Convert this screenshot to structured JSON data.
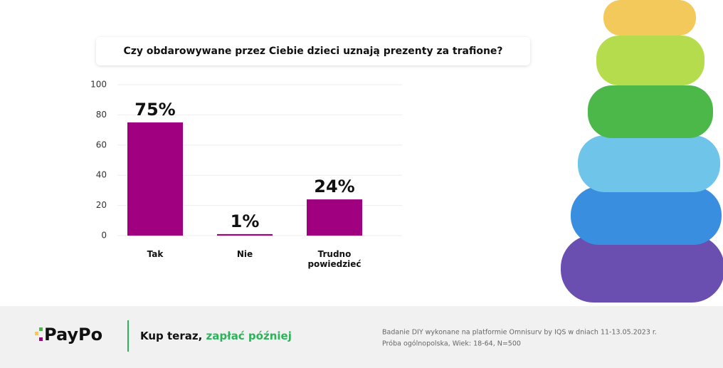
{
  "chart_data": {
    "type": "bar",
    "title": "Czy obdarowywane przez Ciebie dzieci uznają prezenty za trafione?",
    "categories": [
      "Tak",
      "Nie",
      "Trudno powiedzieć"
    ],
    "values": [
      75,
      1,
      24
    ],
    "value_labels": [
      "75%",
      "1%",
      "24%"
    ],
    "color": "#a0007f",
    "ylim": [
      0,
      100
    ],
    "yticks": [
      0,
      20,
      40,
      60,
      80,
      100
    ],
    "grid": true
  },
  "footer": {
    "logo": "PayPo",
    "tagline": [
      "Kup teraz,",
      "zapłać później"
    ],
    "note": [
      "Badanie DIY wykonane na platformie Omnisurv by IQS w dniach 11-13.05.2023 r.",
      "Próba ogólnopolska, Wiek: 18-64, N=500"
    ]
  }
}
